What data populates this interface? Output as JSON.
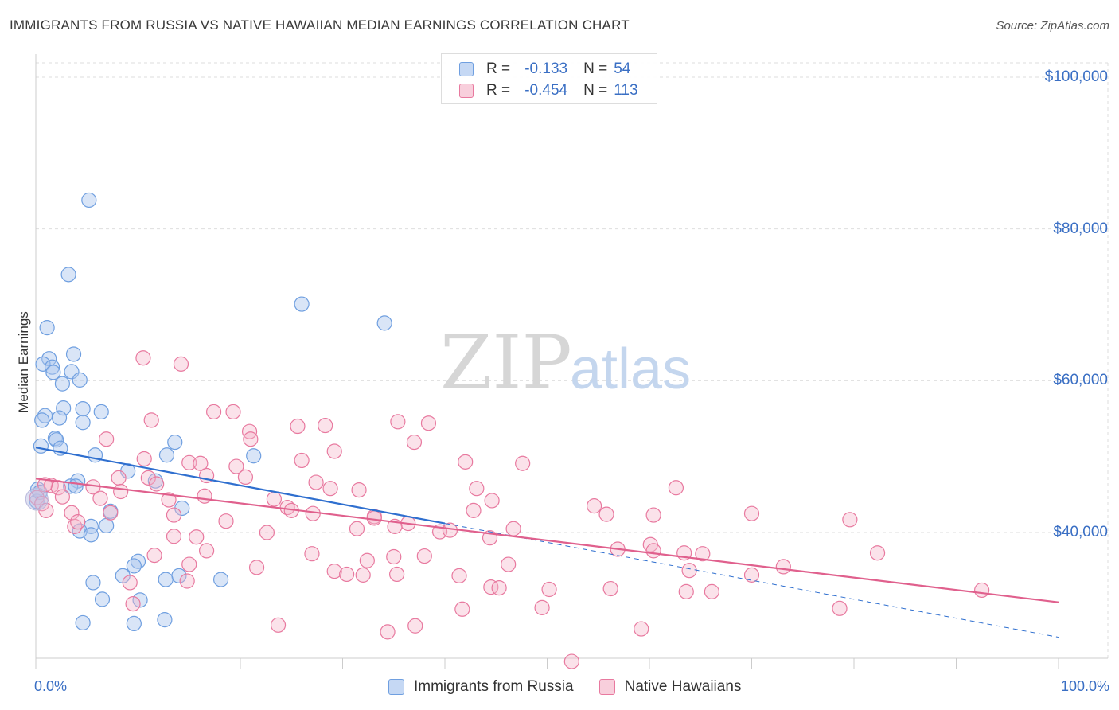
{
  "title": "IMMIGRANTS FROM RUSSIA VS NATIVE HAWAIIAN MEDIAN EARNINGS CORRELATION CHART",
  "source": "Source: ZipAtlas.com",
  "watermark": {
    "zip": "ZIP",
    "atlas": "atlas"
  },
  "colors": {
    "blue": "#6f9fe0",
    "blue_fill": "#aac6ee",
    "pink": "#e8799f",
    "pink_fill": "#f4b6cb",
    "blue_line": "#2f6fcf",
    "pink_line": "#e0608d",
    "axis_text": "#3a6fc4"
  },
  "legend": {
    "r_label": "R =",
    "n_label": "N =",
    "rows": [
      {
        "r": "-0.133",
        "n": "54",
        "swatch": "blue"
      },
      {
        "r": "-0.454",
        "n": "113",
        "swatch": "pink"
      }
    ]
  },
  "chart_data": {
    "type": "scatter",
    "ylabel": "Median Earnings",
    "xlabel": "",
    "x_tick_labels": [
      "0.0%",
      "100.0%"
    ],
    "y_tick_labels": [
      "$100,000",
      "$80,000",
      "$60,000",
      "$40,000"
    ],
    "xlim": [
      0,
      100
    ],
    "ylim": [
      19000,
      104000
    ],
    "series": [
      {
        "name": "Immigrants from Russia",
        "color": "blue",
        "trend": {
          "x0": 0,
          "y0": 51200,
          "x1": 40,
          "y1": 41200,
          "dashed_to_x": 100,
          "dashed_to_y": 26200
        },
        "points": [
          [
            5.2,
            83800
          ],
          [
            3.2,
            74000
          ],
          [
            26,
            70100
          ],
          [
            34.1,
            67600
          ],
          [
            1.1,
            67000
          ],
          [
            1.3,
            62900
          ],
          [
            0.7,
            62200
          ],
          [
            3.7,
            63500
          ],
          [
            1.6,
            61800
          ],
          [
            3.5,
            61200
          ],
          [
            1.7,
            61100
          ],
          [
            4.3,
            60100
          ],
          [
            2.6,
            59600
          ],
          [
            2.7,
            56400
          ],
          [
            4.6,
            56300
          ],
          [
            6.4,
            55900
          ],
          [
            0.9,
            55400
          ],
          [
            2.3,
            55100
          ],
          [
            0.6,
            54800
          ],
          [
            4.6,
            54500
          ],
          [
            1.9,
            52400
          ],
          [
            2.0,
            52200
          ],
          [
            13.6,
            51900
          ],
          [
            0.5,
            51400
          ],
          [
            2.4,
            51100
          ],
          [
            5.8,
            50200
          ],
          [
            12.8,
            50200
          ],
          [
            21.3,
            50100
          ],
          [
            9.0,
            48100
          ],
          [
            4.1,
            46800
          ],
          [
            11.7,
            46800
          ],
          [
            3.4,
            46100
          ],
          [
            3.9,
            46100
          ],
          [
            0.2,
            45700
          ],
          [
            14.3,
            43200
          ],
          [
            7.3,
            42800
          ],
          [
            5.4,
            40800
          ],
          [
            6.9,
            40900
          ],
          [
            4.3,
            40200
          ],
          [
            5.4,
            39700
          ],
          [
            10.0,
            36200
          ],
          [
            9.6,
            35600
          ],
          [
            8.5,
            34300
          ],
          [
            14.0,
            34300
          ],
          [
            12.7,
            33800
          ],
          [
            18.1,
            33800
          ],
          [
            5.6,
            33400
          ],
          [
            6.5,
            31200
          ],
          [
            10.2,
            31100
          ],
          [
            4.6,
            28100
          ],
          [
            9.6,
            28000
          ],
          [
            12.6,
            28500
          ],
          [
            0.1,
            44100
          ],
          [
            0.4,
            45300
          ]
        ]
      },
      {
        "name": "Native Hawaiians",
        "color": "pink",
        "trend": {
          "x0": 0,
          "y0": 47100,
          "x1": 100,
          "y1": 30800
        },
        "points": [
          [
            10.5,
            63000
          ],
          [
            14.2,
            62200
          ],
          [
            17.4,
            55900
          ],
          [
            19.3,
            55900
          ],
          [
            11.3,
            54800
          ],
          [
            35.4,
            54600
          ],
          [
            38.4,
            54400
          ],
          [
            28.3,
            54100
          ],
          [
            25.6,
            54000
          ],
          [
            20.9,
            53300
          ],
          [
            6.9,
            52300
          ],
          [
            21.0,
            52300
          ],
          [
            37.0,
            51900
          ],
          [
            29.2,
            50700
          ],
          [
            10.6,
            49700
          ],
          [
            26.0,
            49500
          ],
          [
            15.0,
            49200
          ],
          [
            16.1,
            49100
          ],
          [
            42.0,
            49300
          ],
          [
            47.6,
            49100
          ],
          [
            19.6,
            48700
          ],
          [
            20.5,
            47300
          ],
          [
            8.1,
            47200
          ],
          [
            16.7,
            47500
          ],
          [
            11.0,
            47200
          ],
          [
            27.4,
            46600
          ],
          [
            1.5,
            46200
          ],
          [
            2.2,
            45900
          ],
          [
            5.6,
            46000
          ],
          [
            0.9,
            46300
          ],
          [
            8.3,
            45400
          ],
          [
            11.8,
            46400
          ],
          [
            28.8,
            45800
          ],
          [
            31.6,
            45600
          ],
          [
            43.1,
            45800
          ],
          [
            62.6,
            45900
          ],
          [
            2.6,
            44700
          ],
          [
            6.3,
            44500
          ],
          [
            16.5,
            44800
          ],
          [
            13.0,
            44300
          ],
          [
            23.3,
            44400
          ],
          [
            24.6,
            43300
          ],
          [
            25.0,
            42900
          ],
          [
            44.6,
            44200
          ],
          [
            3.5,
            42600
          ],
          [
            7.3,
            42600
          ],
          [
            13.5,
            42300
          ],
          [
            18.6,
            41500
          ],
          [
            27.1,
            42500
          ],
          [
            33.1,
            42100
          ],
          [
            36.4,
            41200
          ],
          [
            42.8,
            42900
          ],
          [
            54.6,
            43500
          ],
          [
            55.8,
            42400
          ],
          [
            60.4,
            42300
          ],
          [
            70.0,
            42500
          ],
          [
            79.6,
            41700
          ],
          [
            3.8,
            40800
          ],
          [
            4.1,
            41400
          ],
          [
            31.4,
            40500
          ],
          [
            33.1,
            41900
          ],
          [
            35.1,
            40800
          ],
          [
            39.5,
            40100
          ],
          [
            40.5,
            40300
          ],
          [
            44.4,
            39300
          ],
          [
            46.7,
            40500
          ],
          [
            13.5,
            39500
          ],
          [
            15.7,
            39400
          ],
          [
            22.6,
            40000
          ],
          [
            11.6,
            37000
          ],
          [
            16.7,
            37600
          ],
          [
            27.0,
            37200
          ],
          [
            35.0,
            36800
          ],
          [
            38.0,
            36900
          ],
          [
            56.9,
            37800
          ],
          [
            60.1,
            38400
          ],
          [
            60.4,
            37600
          ],
          [
            63.4,
            37300
          ],
          [
            65.2,
            37200
          ],
          [
            82.3,
            37300
          ],
          [
            14.8,
            33600
          ],
          [
            21.6,
            35400
          ],
          [
            29.2,
            34900
          ],
          [
            30.4,
            34500
          ],
          [
            32.0,
            34400
          ],
          [
            32.4,
            36300
          ],
          [
            35.3,
            34500
          ],
          [
            41.4,
            34300
          ],
          [
            46.2,
            35800
          ],
          [
            63.9,
            35000
          ],
          [
            70.0,
            34400
          ],
          [
            73.1,
            35500
          ],
          [
            9.2,
            33400
          ],
          [
            15.0,
            35800
          ],
          [
            44.5,
            32800
          ],
          [
            45.3,
            32700
          ],
          [
            56.2,
            32600
          ],
          [
            63.6,
            32200
          ],
          [
            66.1,
            32200
          ],
          [
            92.5,
            32400
          ],
          [
            9.5,
            30600
          ],
          [
            41.7,
            29900
          ],
          [
            49.5,
            30100
          ],
          [
            78.6,
            30000
          ],
          [
            23.7,
            27800
          ],
          [
            34.4,
            26900
          ],
          [
            37.1,
            27700
          ],
          [
            59.2,
            27300
          ],
          [
            52.4,
            23000
          ],
          [
            0.1,
            44600
          ],
          [
            0.6,
            43800
          ],
          [
            1.0,
            42900
          ],
          [
            50.2,
            32500
          ]
        ]
      }
    ]
  }
}
